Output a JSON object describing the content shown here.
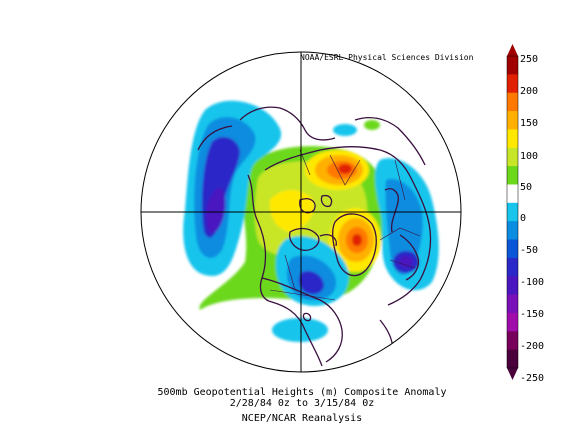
{
  "source_credit": "NOAA/ESRL Physical Sciences Division",
  "caption": {
    "line1": "500mb Geopotential Heights (m)   Composite Anomaly",
    "line2": "2/28/84 0z  to 3/15/84 0z",
    "line3": "NCEP/NCAR Reanalysis"
  },
  "colorbar": {
    "labels": [
      "250",
      "200",
      "150",
      "100",
      "50",
      "0",
      "-50",
      "-100",
      "-150",
      "-200",
      "-250"
    ],
    "colors": [
      "#a00000",
      "#e02000",
      "#ff7800",
      "#ffb000",
      "#ffe800",
      "#c8e628",
      "#6cd81a",
      "#ffffff",
      "#16c4ec",
      "#0a8ce0",
      "#0a55d8",
      "#2a28c8",
      "#4a16c0",
      "#7a10b8",
      "#a00caa",
      "#78005a",
      "#4a003a"
    ]
  }
}
